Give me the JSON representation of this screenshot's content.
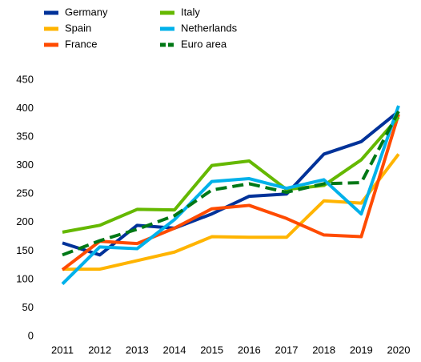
{
  "chart_data": {
    "type": "line",
    "categories": [
      "2011",
      "2012",
      "2013",
      "2014",
      "2015",
      "2016",
      "2017",
      "2018",
      "2019",
      "2020"
    ],
    "series": [
      {
        "name": "Germany",
        "color": "#003299",
        "values": [
          164,
          143,
          195,
          190,
          215,
          246,
          250,
          320,
          342,
          395
        ]
      },
      {
        "name": "Spain",
        "color": "#ffb400",
        "values": [
          118,
          118,
          133,
          148,
          175,
          174,
          174,
          238,
          234,
          320
        ]
      },
      {
        "name": "France",
        "color": "#ff4b00",
        "values": [
          117,
          167,
          163,
          190,
          224,
          230,
          207,
          178,
          175,
          390
        ]
      },
      {
        "name": "Italy",
        "color": "#65b800",
        "values": [
          183,
          195,
          223,
          222,
          300,
          308,
          258,
          265,
          310,
          385
        ]
      },
      {
        "name": "Netherlands",
        "color": "#00b1ea",
        "values": [
          92,
          157,
          154,
          205,
          272,
          277,
          260,
          275,
          215,
          405
        ]
      },
      {
        "name": "Euro area",
        "color": "#007816",
        "dashed": true,
        "values": [
          143,
          168,
          188,
          212,
          257,
          268,
          253,
          268,
          270,
          395
        ]
      }
    ],
    "ylim": [
      0,
      450
    ],
    "yticks": [
      0,
      50,
      100,
      150,
      200,
      250,
      300,
      350,
      400,
      450
    ],
    "grid": false,
    "legend": "top"
  }
}
